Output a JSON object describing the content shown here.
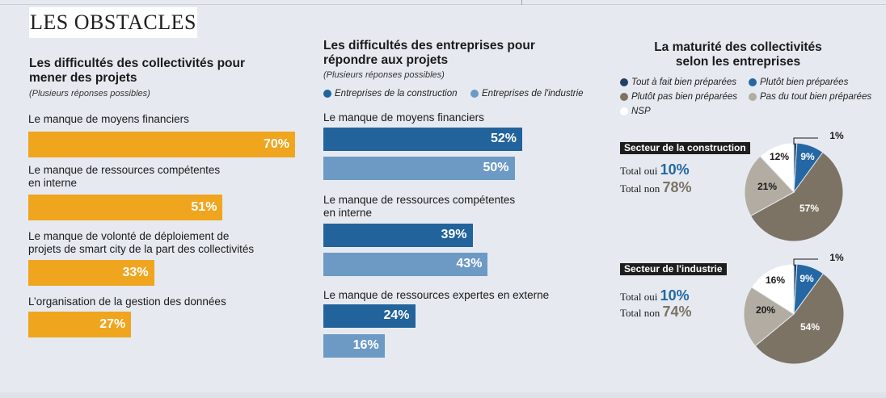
{
  "header": {
    "tag": "LES OBSTACLES"
  },
  "colors": {
    "orange": "#f0a51e",
    "construction": "#22639b",
    "industrie": "#6c9ac4",
    "tres_bien": "#1f3f66",
    "plutot_bien": "#2467a4",
    "plutot_pas": "#7c7365",
    "pas_du_tout": "#b2aca2",
    "nsp": "#ffffff"
  },
  "chart_data": [
    {
      "type": "bar",
      "title": "Les difficultés des collectivités pour mener des projets",
      "subtitle": "(Plusieurs réponses possibles)",
      "categories": [
        "Le manque de moyens financiers",
        "Le manque de ressources compétentes en interne",
        "Le manque de volonté de déploiement de projets de smart city de la part des collectivités",
        "L'organisation de la gestion des données"
      ],
      "category_lines": [
        [
          "Le manque de moyens financiers"
        ],
        [
          "Le manque de ressources compétentes",
          "en interne"
        ],
        [
          "Le manque de volonté de déploiement de",
          "projets de smart city de la part des collectivités"
        ],
        [
          "L’organisation de la gestion des données"
        ]
      ],
      "values": [
        70,
        51,
        33,
        27
      ],
      "labels": [
        "70%",
        "51%",
        "33%",
        "27%"
      ],
      "xlim": [
        0,
        100
      ]
    },
    {
      "type": "bar",
      "title_lines": [
        "Les difficultés des entreprises pour",
        "répondre aux projets"
      ],
      "subtitle": "(Plusieurs réponses possibles)",
      "categories": [
        "Le manque de moyens financiers",
        "Le manque de ressources compétentes en interne",
        "Le manque de ressources expertes en externe"
      ],
      "category_lines": [
        [
          "Le manque de moyens financiers"
        ],
        [
          "Le manque de ressources compétentes",
          "en interne"
        ],
        [
          "Le manque de ressources expertes en externe"
        ]
      ],
      "series": [
        {
          "name": "Entreprises de la construction",
          "values": [
            52,
            39,
            24
          ],
          "labels": [
            "52%",
            "39%",
            "24%"
          ]
        },
        {
          "name": "Entreprises de l'industrie",
          "values": [
            50,
            43,
            16
          ],
          "labels": [
            "50%",
            "43%",
            "16%"
          ]
        }
      ],
      "xlim": [
        0,
        100
      ]
    },
    {
      "type": "pie",
      "title_lines": [
        "La maturité des collectivités",
        "selon les entreprises"
      ],
      "legend": [
        "Tout à fait bien préparées",
        "Plutôt bien préparées",
        "Plutôt pas bien préparées",
        "Pas du tout bien préparées",
        "NSP"
      ],
      "pies": [
        {
          "sector": "Secteur de la construction",
          "total_oui_label": "Total oui",
          "total_oui": "10%",
          "total_non_label": "Total non",
          "total_non": "78%",
          "values": [
            1,
            9,
            57,
            21,
            12
          ],
          "labels": [
            "1%",
            "9%",
            "57%",
            "21%",
            "12%"
          ]
        },
        {
          "sector": "Secteur de l'industrie",
          "total_oui_label": "Total oui",
          "total_oui": "10%",
          "total_non_label": "Total non",
          "total_non": "74%",
          "values": [
            1,
            9,
            54,
            20,
            16
          ],
          "labels": [
            "1%",
            "9%",
            "54%",
            "20%",
            "16%"
          ]
        }
      ]
    }
  ]
}
